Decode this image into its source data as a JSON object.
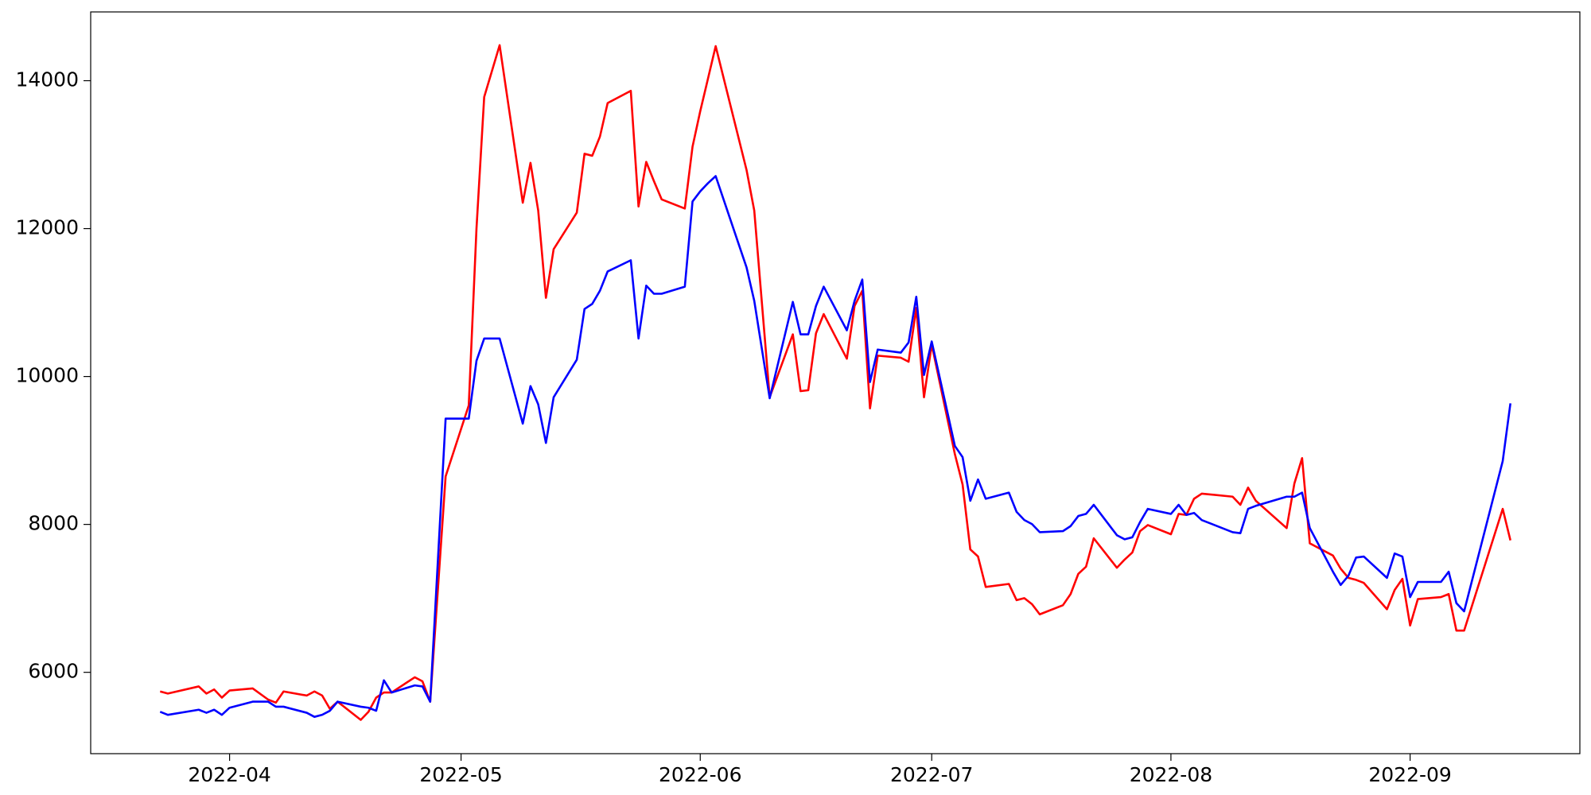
{
  "chart_data": {
    "type": "line",
    "x": [
      "2022-03-23",
      "2022-03-24",
      "2022-03-28",
      "2022-03-29",
      "2022-03-30",
      "2022-03-31",
      "2022-04-01",
      "2022-04-04",
      "2022-04-06",
      "2022-04-07",
      "2022-04-08",
      "2022-04-11",
      "2022-04-12",
      "2022-04-13",
      "2022-04-14",
      "2022-04-15",
      "2022-04-18",
      "2022-04-19",
      "2022-04-20",
      "2022-04-21",
      "2022-04-22",
      "2022-04-25",
      "2022-04-26",
      "2022-04-27",
      "2022-04-29",
      "2022-05-02",
      "2022-05-03",
      "2022-05-04",
      "2022-05-06",
      "2022-05-09",
      "2022-05-10",
      "2022-05-11",
      "2022-05-12",
      "2022-05-13",
      "2022-05-16",
      "2022-05-17",
      "2022-05-18",
      "2022-05-19",
      "2022-05-20",
      "2022-05-23",
      "2022-05-24",
      "2022-05-25",
      "2022-05-26",
      "2022-05-27",
      "2022-05-30",
      "2022-05-31",
      "2022-06-01",
      "2022-06-02",
      "2022-06-03",
      "2022-06-07",
      "2022-06-08",
      "2022-06-10",
      "2022-06-13",
      "2022-06-14",
      "2022-06-15",
      "2022-06-16",
      "2022-06-17",
      "2022-06-20",
      "2022-06-21",
      "2022-06-22",
      "2022-06-23",
      "2022-06-24",
      "2022-06-27",
      "2022-06-28",
      "2022-06-29",
      "2022-06-30",
      "2022-07-01",
      "2022-07-04",
      "2022-07-05",
      "2022-07-06",
      "2022-07-07",
      "2022-07-08",
      "2022-07-11",
      "2022-07-12",
      "2022-07-13",
      "2022-07-14",
      "2022-07-15",
      "2022-07-18",
      "2022-07-19",
      "2022-07-20",
      "2022-07-21",
      "2022-07-22",
      "2022-07-25",
      "2022-07-26",
      "2022-07-27",
      "2022-07-28",
      "2022-07-29",
      "2022-08-01",
      "2022-08-02",
      "2022-08-03",
      "2022-08-04",
      "2022-08-05",
      "2022-08-09",
      "2022-08-10",
      "2022-08-11",
      "2022-08-12",
      "2022-08-16",
      "2022-08-17",
      "2022-08-18",
      "2022-08-19",
      "2022-08-22",
      "2022-08-23",
      "2022-08-24",
      "2022-08-25",
      "2022-08-26",
      "2022-08-29",
      "2022-08-30",
      "2022-08-31",
      "2022-09-01",
      "2022-09-02",
      "2022-09-05",
      "2022-09-06",
      "2022-09-07",
      "2022-09-08",
      "2022-09-13",
      "2022-09-14"
    ],
    "series": [
      {
        "color": "#ff0000",
        "values": [
          5741,
          5713,
          5809,
          5713,
          5768,
          5658,
          5754,
          5782,
          5631,
          5590,
          5741,
          5686,
          5741,
          5686,
          5507,
          5603,
          5357,
          5466,
          5658,
          5727,
          5727,
          5933,
          5878,
          5603,
          8649,
          9610,
          12000,
          13780,
          14480,
          12350,
          12889,
          12244,
          11064,
          11722,
          12216,
          13012,
          12985,
          13245,
          13698,
          13863,
          12299,
          12902,
          12642,
          12395,
          12271,
          13108,
          13588,
          14027,
          14467,
          12793,
          12244,
          9719,
          10570,
          9802,
          9815,
          10584,
          10844,
          10241,
          10954,
          11160,
          9569,
          10282,
          10254,
          10200,
          10927,
          9719,
          10433,
          8951,
          8540,
          7662,
          7566,
          7154,
          7195,
          6976,
          7003,
          6921,
          6784,
          6907,
          7058,
          7332,
          7428,
          7812,
          7414,
          7524,
          7620,
          7909,
          7991,
          7867,
          8142,
          8128,
          8347,
          8416,
          8375,
          8265,
          8498,
          8320,
          7950,
          8553,
          8896,
          7744,
          7579,
          7401,
          7277,
          7250,
          7209,
          6853,
          7113,
          7264,
          6633,
          6990,
          7017,
          7058,
          6564,
          6564,
          8210,
          7785
        ]
      },
      {
        "color": "#0000ff",
        "values": [
          5466,
          5425,
          5494,
          5453,
          5494,
          5425,
          5521,
          5603,
          5603,
          5535,
          5535,
          5453,
          5398,
          5425,
          5480,
          5603,
          5535,
          5521,
          5480,
          5892,
          5727,
          5823,
          5809,
          5603,
          9431,
          9431,
          10213,
          10514,
          10514,
          9363,
          9870,
          9623,
          9102,
          9719,
          10227,
          10913,
          10982,
          11160,
          11421,
          11572,
          10514,
          11229,
          11119,
          11119,
          11215,
          12367,
          12504,
          12614,
          12710,
          11476,
          11023,
          9706,
          11009,
          10570,
          10570,
          10954,
          11215,
          10625,
          11023,
          11311,
          9925,
          10364,
          10323,
          10460,
          11078,
          10021,
          10474,
          9061,
          8910,
          8320,
          8608,
          8347,
          8430,
          8169,
          8059,
          8004,
          7895,
          7909,
          7977,
          8114,
          8142,
          8265,
          7854,
          7799,
          7826,
          8032,
          8210,
          8142,
          8265,
          8128,
          8155,
          8059,
          7895,
          7881,
          8210,
          8251,
          8375,
          8375,
          8430,
          7950,
          7360,
          7181,
          7305,
          7552,
          7565,
          7277,
          7607,
          7565,
          7017,
          7222,
          7222,
          7360,
          6935,
          6825,
          8855,
          9637
        ]
      }
    ],
    "xlim": [
      "2022-03-14",
      "2022-09-23"
    ],
    "xticks": [
      {
        "value": "2022-04-01",
        "label": "2022-04"
      },
      {
        "value": "2022-05-01",
        "label": "2022-05"
      },
      {
        "value": "2022-06-01",
        "label": "2022-06"
      },
      {
        "value": "2022-07-01",
        "label": "2022-07"
      },
      {
        "value": "2022-08-01",
        "label": "2022-08"
      },
      {
        "value": "2022-09-01",
        "label": "2022-09"
      }
    ],
    "ylim": [
      4900,
      14930
    ],
    "yticks": [
      6000,
      8000,
      10000,
      12000,
      14000
    ]
  }
}
